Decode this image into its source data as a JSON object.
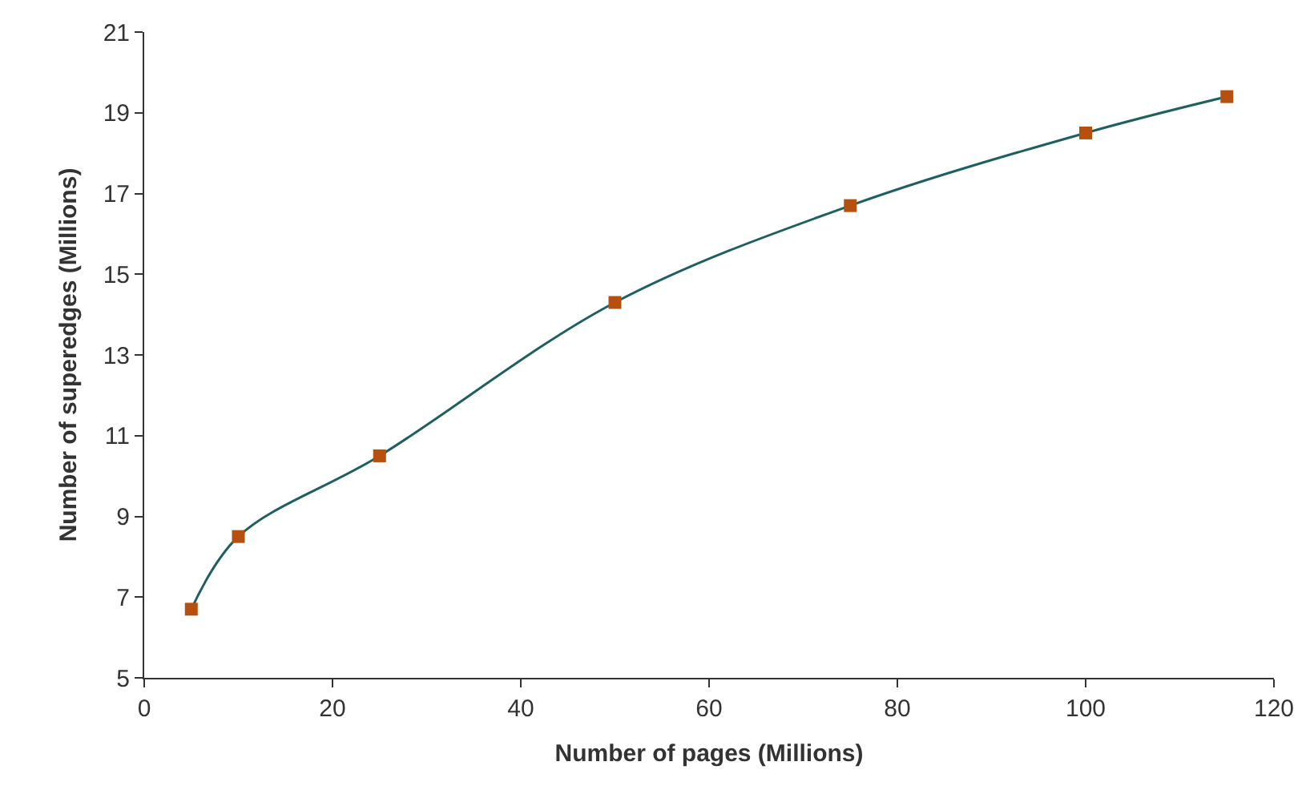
{
  "chart_data": {
    "type": "line",
    "xlabel": "Number of pages (Millions)",
    "ylabel": "Number of superedges (Millions)",
    "x": [
      5,
      10,
      25,
      50,
      75,
      100,
      115
    ],
    "series": [
      {
        "color": "#1f5f5f",
        "colors": [
          "#b5500f",
          "#b5500f",
          "#b5500f",
          "#b5500f",
          "#b5500f",
          "#b5500f",
          "#b5500f"
        ],
        "values": [
          6.7,
          8.5,
          10.5,
          14.3,
          16.7,
          18.5,
          19.4
        ]
      }
    ],
    "xlim": [
      0,
      120
    ],
    "xticks": [
      0,
      20,
      40,
      60,
      80,
      100,
      120
    ],
    "ylim": [
      5,
      21
    ],
    "yticks": [
      5,
      7,
      9,
      11,
      13,
      15,
      17,
      19,
      21
    ],
    "marker": "square",
    "line_style": "solid"
  }
}
